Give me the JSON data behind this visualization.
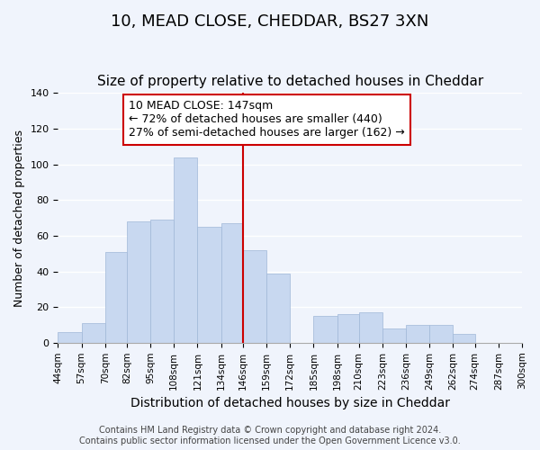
{
  "title": "10, MEAD CLOSE, CHEDDAR, BS27 3XN",
  "subtitle": "Size of property relative to detached houses in Cheddar",
  "xlabel": "Distribution of detached houses by size in Cheddar",
  "ylabel": "Number of detached properties",
  "footer_lines": [
    "Contains HM Land Registry data © Crown copyright and database right 2024.",
    "Contains public sector information licensed under the Open Government Licence v3.0."
  ],
  "bar_edges": [
    44,
    57,
    70,
    82,
    95,
    108,
    121,
    134,
    146,
    159,
    172,
    185,
    198,
    210,
    223,
    236,
    249,
    262,
    274,
    287,
    300
  ],
  "bar_heights": [
    6,
    11,
    51,
    68,
    69,
    104,
    65,
    67,
    52,
    39,
    0,
    15,
    16,
    17,
    8,
    10,
    10,
    5,
    0,
    0,
    0
  ],
  "bar_color": "#c8d8f0",
  "bar_edgecolor": "#a0b8d8",
  "vline_x": 146,
  "vline_color": "#cc0000",
  "annotation_title": "10 MEAD CLOSE: 147sqm",
  "annotation_line1": "← 72% of detached houses are smaller (440)",
  "annotation_line2": "27% of semi-detached houses are larger (162) →",
  "annotation_box_edgecolor": "#cc0000",
  "annotation_box_facecolor": "#ffffff",
  "ylim": [
    0,
    140
  ],
  "background_color": "#f0f4fc",
  "tick_labels": [
    "44sqm",
    "57sqm",
    "70sqm",
    "82sqm",
    "95sqm",
    "108sqm",
    "121sqm",
    "134sqm",
    "146sqm",
    "159sqm",
    "172sqm",
    "185sqm",
    "198sqm",
    "210sqm",
    "223sqm",
    "236sqm",
    "249sqm",
    "262sqm",
    "274sqm",
    "287sqm",
    "300sqm"
  ],
  "grid_color": "#ffffff",
  "title_fontsize": 13,
  "subtitle_fontsize": 11,
  "xlabel_fontsize": 10,
  "ylabel_fontsize": 9,
  "tick_fontsize": 7.5,
  "annotation_fontsize": 9,
  "footer_fontsize": 7
}
